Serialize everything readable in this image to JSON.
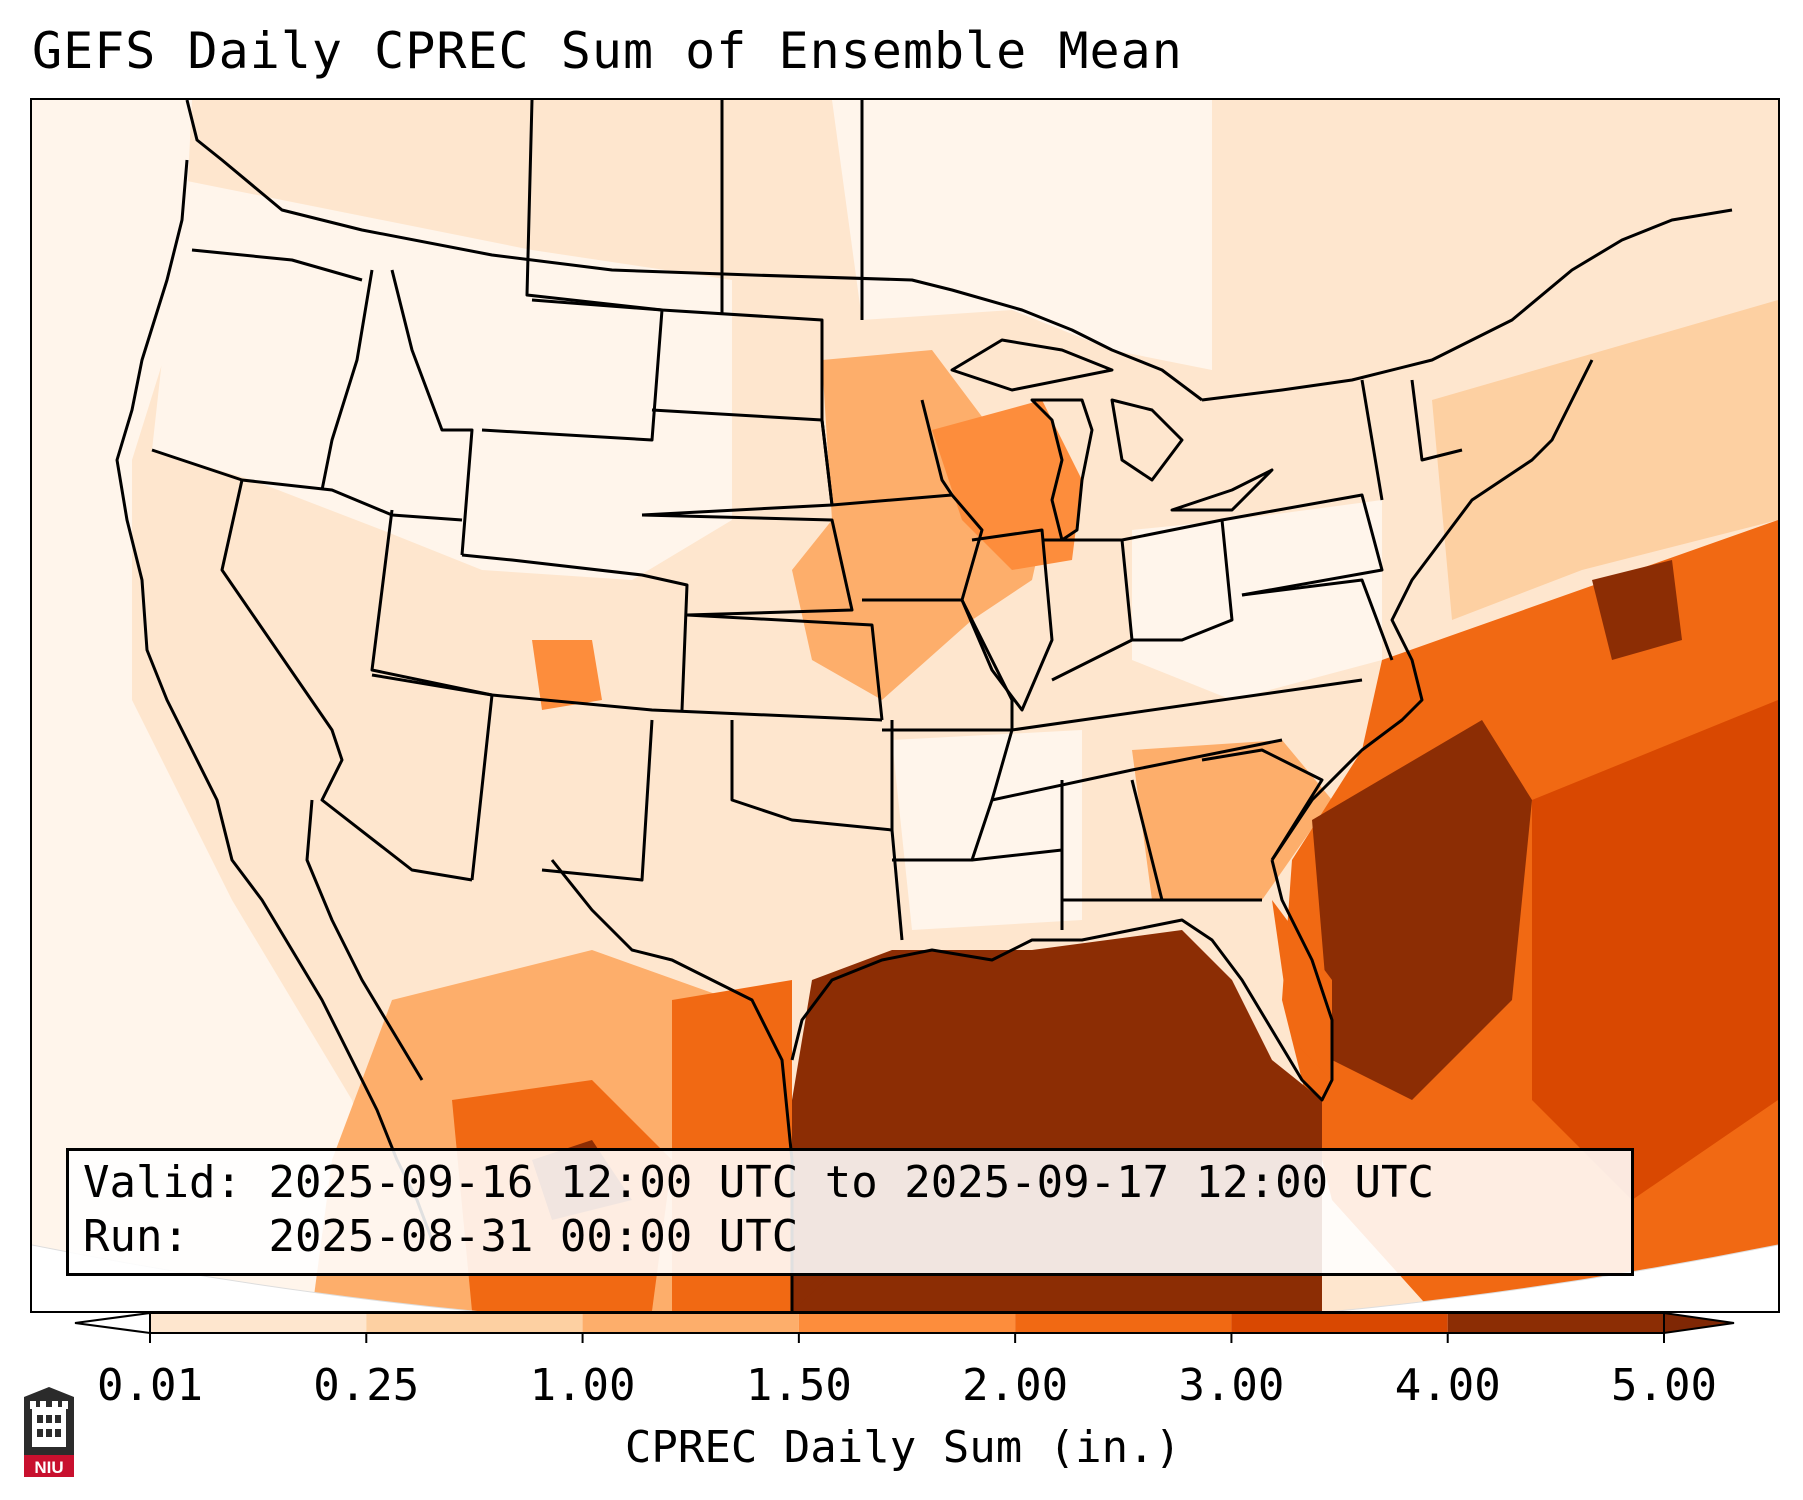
{
  "title": "GEFS Daily CPREC Sum of Ensemble Mean",
  "info": {
    "valid_label": "Valid:",
    "valid_value": "2025-09-16 12:00 UTC to 2025-09-17 12:00 UTC",
    "run_label": "Run:",
    "run_value": "2025-08-31 00:00 UTC"
  },
  "colorbar": {
    "label": "CPREC Daily Sum (in.)",
    "ticks": [
      "0.01",
      "0.25",
      "1.00",
      "1.50",
      "2.00",
      "3.00",
      "4.00",
      "5.00"
    ],
    "colors": [
      "#fff5eb",
      "#fee6ce",
      "#fdd0a2",
      "#fdae6b",
      "#fd8d3c",
      "#f16913",
      "#d94801",
      "#8c2d04"
    ],
    "under_color": "#ffffff",
    "over_color": "#7f2704"
  },
  "logo": {
    "text": "NIU",
    "colors": {
      "shield": "#2b2b2b",
      "band": "#c8102e"
    }
  },
  "map": {
    "ocean_color": "#ffffff",
    "outline_color": "#000000"
  }
}
